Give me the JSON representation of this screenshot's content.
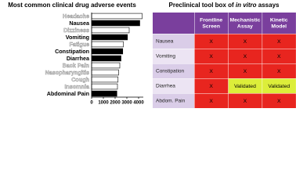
{
  "chart_data": {
    "type": "hbar",
    "title": "Most common clinical drug adverse events",
    "categories": [
      "Headache",
      "Nausea",
      "Dizziness",
      "Vomiting",
      "Fatigue",
      "Constipation",
      "Diarrhea",
      "Back Pain",
      "Nasopharyngitis",
      "Cough",
      "Insomnia",
      "Abdominal Pain"
    ],
    "values": [
      4300,
      4100,
      3200,
      3050,
      2700,
      2650,
      2500,
      2400,
      2300,
      2250,
      2200,
      2150
    ],
    "bar_colors": [
      "#ffffff",
      "#000000",
      "#ffffff",
      "#000000",
      "#ffffff",
      "#000000",
      "#000000",
      "#ffffff",
      "#ffffff",
      "#ffffff",
      "#ffffff",
      "#000000"
    ],
    "xlim": [
      0,
      4400
    ],
    "xticks": [
      0,
      1000,
      2000,
      3000,
      4000
    ]
  },
  "table": {
    "title_start": "Preclinical tool box of ",
    "title_italic": "in vitro",
    "title_end": " assays",
    "headers": [
      [
        "Frontline",
        "Screen"
      ],
      [
        "Mechanistic",
        "Assay"
      ],
      [
        "Kinetic",
        "Model"
      ]
    ],
    "header_color": "#7a3f9d",
    "rows": [
      {
        "label": "Nausea",
        "cells": [
          {
            "text": "X",
            "color": "#e8251f"
          },
          {
            "text": "X",
            "color": "#e8251f"
          },
          {
            "text": "X",
            "color": "#e8251f"
          }
        ]
      },
      {
        "label": "Vomiting",
        "cells": [
          {
            "text": "X",
            "color": "#e8251f"
          },
          {
            "text": "X",
            "color": "#e8251f"
          },
          {
            "text": "X",
            "color": "#e8251f"
          }
        ]
      },
      {
        "label": "Constipation",
        "cells": [
          {
            "text": "X",
            "color": "#e8251f"
          },
          {
            "text": "X",
            "color": "#e8251f"
          },
          {
            "text": "X",
            "color": "#e8251f"
          }
        ]
      },
      {
        "label": "Diarrhea",
        "cells": [
          {
            "text": "X",
            "color": "#e8251f"
          },
          {
            "text": "Validated",
            "color": "#dcee3a"
          },
          {
            "text": "Validated",
            "color": "#dcee3a"
          }
        ]
      },
      {
        "label": "Abdom. Pain",
        "cells": [
          {
            "text": "X",
            "color": "#e8251f"
          },
          {
            "text": "X",
            "color": "#e8251f"
          },
          {
            "text": "X",
            "color": "#e8251f"
          }
        ]
      }
    ]
  }
}
